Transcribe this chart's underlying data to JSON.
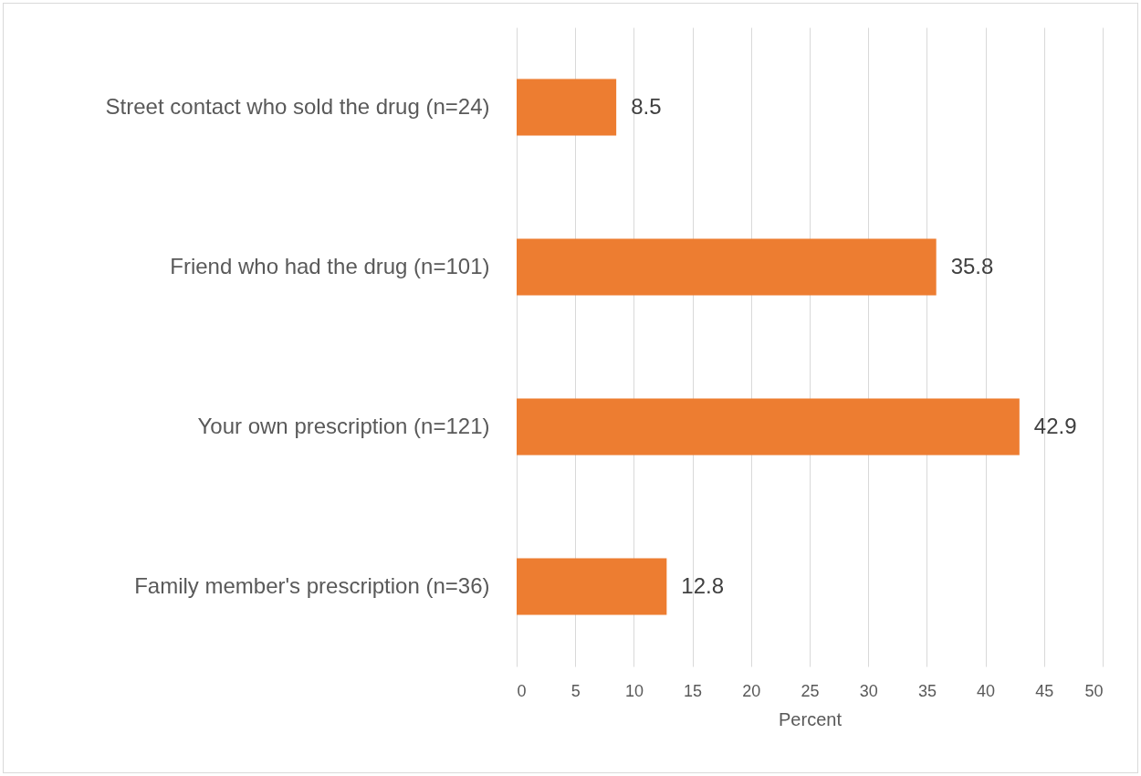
{
  "chart_data": {
    "type": "bar",
    "orientation": "horizontal",
    "categories": [
      "Street contact who sold the drug (n=24)",
      "Friend who had the drug (n=101)",
      "Your own prescription (n=121)",
      "Family member's prescription (n=36)"
    ],
    "values": [
      8.5,
      35.8,
      42.9,
      12.8
    ],
    "color": "#ed7d31",
    "xlabel": "Percent",
    "xlim": [
      0,
      50
    ],
    "xticks": [
      0,
      5,
      10,
      15,
      20,
      25,
      30,
      35,
      40,
      45,
      50
    ],
    "grid": "x",
    "data_labels": true
  }
}
